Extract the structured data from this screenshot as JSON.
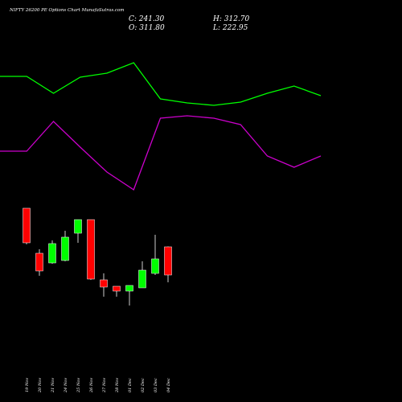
{
  "chart_data": [
    {
      "type": "line",
      "x": [
        0,
        1,
        2,
        3,
        4,
        5,
        6,
        7,
        8,
        9,
        10,
        11,
        12
      ],
      "xlim": [
        0,
        12
      ],
      "ylim": [
        250,
        430
      ],
      "series": [
        {
          "color": "#00ff00",
          "values": [
            405,
            405,
            384,
            404,
            409,
            422,
            377,
            372,
            369,
            373,
            384,
            393,
            381
          ]
        },
        {
          "color": "#cc00cc",
          "values": [
            312,
            312,
            349,
            317,
            286,
            264,
            353,
            356,
            353,
            345,
            306,
            292,
            306
          ]
        }
      ]
    },
    {
      "type": "candlestick",
      "title": "NIFTY 26200 PE Options Chart MunafaSutras.com",
      "ohlc_labels": {
        "close": "C: 241.30",
        "high": "H: 312.70",
        "open": "O: 311.80",
        "low": "L: 222.95"
      },
      "categories": [
        "19 Nov",
        "20 Nov",
        "21 Nov",
        "24 Nov",
        "25 Nov",
        "26 Nov",
        "27 Nov",
        "28 Nov",
        "01 Dec",
        "02 Dec",
        "03 Dec",
        "04 Dec"
      ],
      "open": [
        408.5,
        295.7,
        271.5,
        277.6,
        346.0,
        380.0,
        229.2,
        213.1,
        201.0,
        209.1,
        245.3,
        311.8
      ],
      "high": [
        408.5,
        305.8,
        327.9,
        352.0,
        380.0,
        380.0,
        245.3,
        213.1,
        215.1,
        275.5,
        342.0,
        312.7
      ],
      "low": [
        318.0,
        239.3,
        269.5,
        275.5,
        321.9,
        229.0,
        186.9,
        186.9,
        164.8,
        209.1,
        241.3,
        222.95
      ],
      "close": [
        321.9,
        251.4,
        319.9,
        336.0,
        380.0,
        231.2,
        211.1,
        201.0,
        215.1,
        253.4,
        281.6,
        241.3
      ],
      "up_color": "#00ff00",
      "down_color": "#ff0000",
      "ylim": [
        124.5,
        426.6
      ]
    }
  ]
}
